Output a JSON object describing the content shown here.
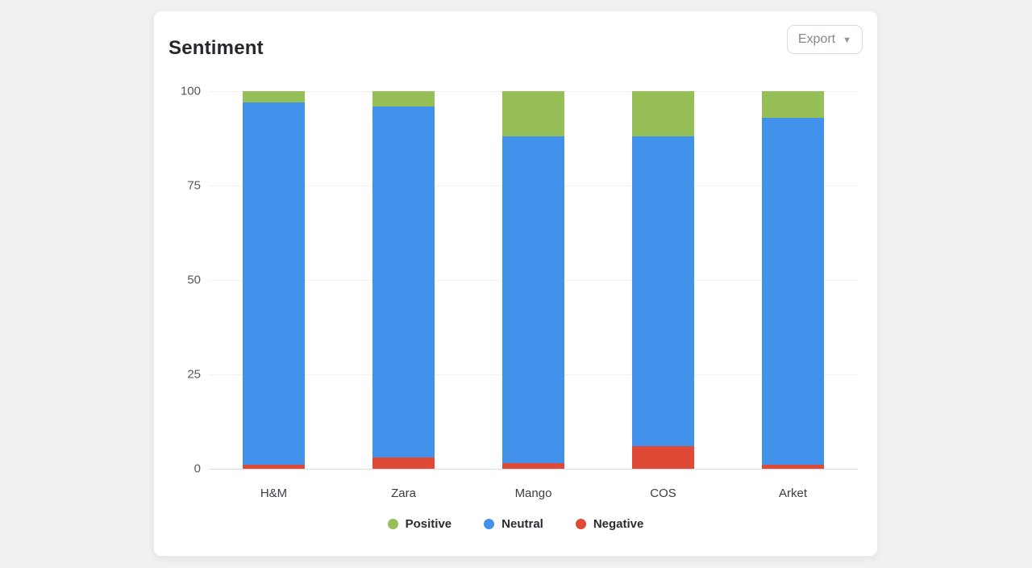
{
  "card": {
    "title": "Sentiment",
    "export_button": {
      "label": "Export",
      "icon": "chevron-down-icon",
      "chevron_glyph": "▼"
    }
  },
  "chart_data": {
    "type": "bar",
    "stacked": true,
    "stack_total": 100,
    "title": "Sentiment",
    "categories": [
      "H&M",
      "Zara",
      "Mango",
      "COS",
      "Arket"
    ],
    "series": [
      {
        "name": "Positive",
        "color": "#96bf57",
        "values": [
          3,
          4,
          12,
          12,
          7
        ]
      },
      {
        "name": "Neutral",
        "color": "#4292eb",
        "values": [
          96,
          93,
          86.5,
          82,
          92
        ]
      },
      {
        "name": "Negative",
        "color": "#df4935",
        "values": [
          1,
          3,
          1.5,
          6,
          1
        ]
      }
    ],
    "xlabel": "",
    "ylabel": "",
    "ylim": [
      0,
      100
    ],
    "yticks": [
      0,
      25,
      50,
      75,
      100
    ],
    "grid": true,
    "legend_position": "bottom",
    "colors": {
      "grid_line": "#f0f1f3",
      "zero_line": "#dcdee1",
      "axis_label": "#54575b",
      "category_label": "#3a3e42",
      "legend_label": "#292d31"
    }
  }
}
